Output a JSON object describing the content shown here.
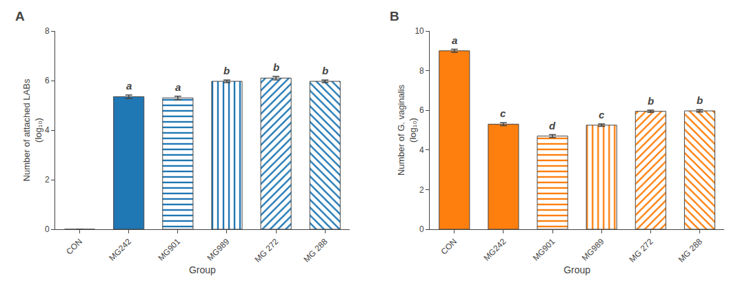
{
  "chart_data": [
    {
      "type": "bar",
      "title": "A",
      "categories": [
        "CON",
        "MG242",
        "MG901",
        "MG989",
        "MG 272",
        "MG 288"
      ],
      "values": [
        0,
        5.35,
        5.3,
        5.97,
        6.1,
        5.97
      ],
      "errors": [
        0,
        0.07,
        0.07,
        0.05,
        0.07,
        0.05
      ],
      "annotations": [
        null,
        "a",
        "a",
        "b",
        "b",
        "b"
      ],
      "xlabel": "Group",
      "ylabel": "Number of attached LABs\n(log₁₀)",
      "ylim": [
        0,
        8
      ],
      "yticks": [
        0,
        2,
        4,
        6,
        8
      ],
      "grid": false
    },
    {
      "type": "bar",
      "title": "B",
      "categories": [
        "CON",
        "MG242",
        "MG901",
        "MG989",
        "MG 272",
        "MG 288"
      ],
      "values": [
        9.0,
        5.3,
        4.7,
        5.25,
        5.95,
        5.97
      ],
      "errors": [
        0.08,
        0.07,
        0.07,
        0.06,
        0.06,
        0.06
      ],
      "annotations": [
        "a",
        "c",
        "d",
        "c",
        "b",
        "b"
      ],
      "xlabel": "Group",
      "ylabel": "Number of G. vaginalis\n(log₁₀)",
      "ylim": [
        0,
        10
      ],
      "yticks": [
        0,
        2,
        4,
        6,
        8,
        10
      ],
      "grid": false
    }
  ]
}
